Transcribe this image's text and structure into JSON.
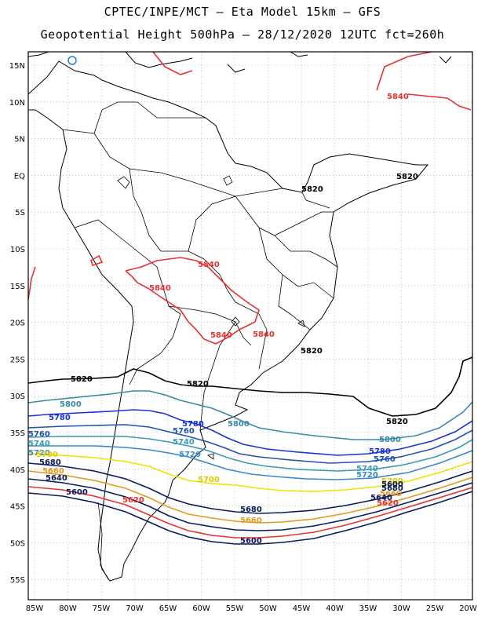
{
  "title_line1": "CPTEC/INPE/MCT –  Eta Model 15km – GFS",
  "title_line2": "Geopotential Height 500hPa – 28/12/2020 12UTC fct=260h",
  "lat_ticks": [
    "15N",
    "10N",
    "5N",
    "EQ",
    "5S",
    "10S",
    "15S",
    "20S",
    "25S",
    "30S",
    "35S",
    "40S",
    "45S",
    "50S",
    "55S"
  ],
  "lon_ticks": [
    "85W",
    "80W",
    "75W",
    "70W",
    "65W",
    "60W",
    "55W",
    "50W",
    "45W",
    "40W",
    "35W",
    "30W",
    "25W",
    "20W"
  ],
  "colors": {
    "c5600": "#0a1a5c",
    "c5620": "#e83030",
    "c5640": "#0a1a5c",
    "c5660": "#e09a20",
    "c5680": "#0a1a5c",
    "c5700": "#f0e000",
    "c5720": "#3a88c8",
    "c5740": "#3a9ab0",
    "c5760": "#2050b0",
    "c5780": "#1a30d8",
    "c5800": "#3a88a8",
    "c5820": "#000000",
    "c5840": "#e83030",
    "coast": "#000000",
    "lake": "#2a80c0"
  },
  "labels": {
    "l5840_ne": "5840",
    "l5820_amazon": "5820",
    "l5820_east": "5820",
    "l5840_bol1": "5840",
    "l5840_bol2": "5840",
    "l5840_bol3": "5840",
    "l5840_peru": "5840",
    "l5820_coast": "5820",
    "l5820_arg": "5820",
    "l5820_chile": "5820",
    "l5820_atl": "5820",
    "l5800_w": "5800",
    "l5800_c": "5800",
    "l5800_e": "5800",
    "l5780_w": "5780",
    "l5780_c": "5780",
    "l5780_e": "5780",
    "l5760_w": "5760",
    "l5760_c": "5760",
    "l5760_e": "5760",
    "l5740_w": "5740",
    "l5740_c": "5740",
    "l5740_e": "5740",
    "l5720_w": "5720",
    "l5720_c": "5720",
    "l5720_e": "5720",
    "l5700_w": "5700",
    "l5700_c": "5700",
    "l5700_e": "5700",
    "l5680_w": "5680",
    "l5680_c": "5680",
    "l5680_e": "5680",
    "l5660_w": "5660",
    "l5660_c": "5660",
    "l5660_e": "5660",
    "l5640_w": "5640",
    "l5640_e": "5640",
    "l5620_c": "5620",
    "l5620_e": "5620",
    "l5600_w": "5600",
    "l5600_c": "5600",
    "l5600_e": "5600"
  }
}
